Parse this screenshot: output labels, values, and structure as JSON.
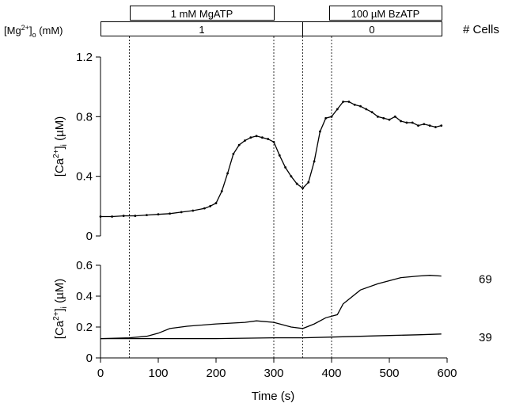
{
  "treatments": {
    "mgatp_label": "1 mM MgATP",
    "bzatp_label": "100 µM BzATP",
    "mg_row_label_base": "[Mg",
    "mg_row_label_sup": "2+",
    "mg_row_label_rest": "]",
    "mg_row_label_sub": "o",
    "mg_row_label_unit": " (mM)",
    "mg_value_before": "1",
    "mg_value_after": "0",
    "cells_header": "# Cells"
  },
  "colors": {
    "line": "#000000",
    "axis": "#000000",
    "background": "#ffffff"
  },
  "chart_data": [
    {
      "type": "line",
      "panel": "top",
      "title": "",
      "ylabel_parts": [
        "[Ca",
        "2+",
        "]",
        "i",
        " (µM)"
      ],
      "ylim": [
        0,
        1.2
      ],
      "yticks": [
        0,
        0.4,
        0.8,
        1.2
      ],
      "ytick_labels": [
        "0",
        "0.4",
        "0.8",
        "1.2"
      ],
      "xlim": [
        0,
        600
      ],
      "grid": false,
      "marker": "small-dots",
      "series": [
        {
          "x": [
            0,
            20,
            40,
            60,
            80,
            100,
            120,
            140,
            160,
            180,
            190,
            200,
            210,
            220,
            230,
            240,
            250,
            260,
            270,
            280,
            290,
            300,
            310,
            320,
            330,
            340,
            350,
            360,
            370,
            380,
            390,
            400,
            410,
            420,
            430,
            440,
            450,
            460,
            470,
            480,
            490,
            500,
            510,
            520,
            530,
            540,
            550,
            560,
            570,
            580,
            590
          ],
          "y": [
            0.13,
            0.13,
            0.135,
            0.135,
            0.14,
            0.145,
            0.15,
            0.16,
            0.17,
            0.185,
            0.2,
            0.22,
            0.3,
            0.42,
            0.55,
            0.61,
            0.64,
            0.66,
            0.67,
            0.66,
            0.65,
            0.63,
            0.54,
            0.46,
            0.4,
            0.35,
            0.32,
            0.36,
            0.5,
            0.7,
            0.79,
            0.8,
            0.85,
            0.9,
            0.9,
            0.88,
            0.87,
            0.85,
            0.83,
            0.8,
            0.79,
            0.78,
            0.8,
            0.77,
            0.76,
            0.76,
            0.74,
            0.75,
            0.74,
            0.73,
            0.74
          ]
        }
      ]
    },
    {
      "type": "line",
      "panel": "bottom",
      "title": "",
      "xlabel": "Time (s)",
      "ylabel_parts": [
        "[Ca",
        "2+",
        "]",
        "i",
        " (µM)"
      ],
      "ylim": [
        0,
        0.6
      ],
      "yticks": [
        0,
        0.2,
        0.4,
        0.6
      ],
      "ytick_labels": [
        "0",
        "0.2",
        "0.4",
        "0.6"
      ],
      "xlim": [
        0,
        600
      ],
      "xticks": [
        0,
        100,
        200,
        300,
        400,
        500,
        600
      ],
      "xtick_labels": [
        "0",
        "100",
        "200",
        "300",
        "400",
        "500",
        "600"
      ],
      "grid": false,
      "series": [
        {
          "label": "69",
          "x": [
            0,
            50,
            80,
            100,
            120,
            150,
            200,
            250,
            270,
            300,
            330,
            350,
            370,
            390,
            410,
            420,
            450,
            480,
            500,
            520,
            550,
            570,
            590
          ],
          "y": [
            0.125,
            0.13,
            0.14,
            0.16,
            0.19,
            0.205,
            0.22,
            0.23,
            0.24,
            0.23,
            0.2,
            0.19,
            0.22,
            0.26,
            0.28,
            0.35,
            0.44,
            0.48,
            0.5,
            0.52,
            0.53,
            0.535,
            0.53
          ]
        },
        {
          "label": "39",
          "x": [
            0,
            100,
            200,
            300,
            350,
            400,
            450,
            500,
            550,
            590
          ],
          "y": [
            0.125,
            0.125,
            0.125,
            0.13,
            0.13,
            0.135,
            0.14,
            0.145,
            0.15,
            0.155
          ]
        }
      ],
      "event_lines_x": [
        50,
        300,
        350,
        400
      ]
    }
  ]
}
